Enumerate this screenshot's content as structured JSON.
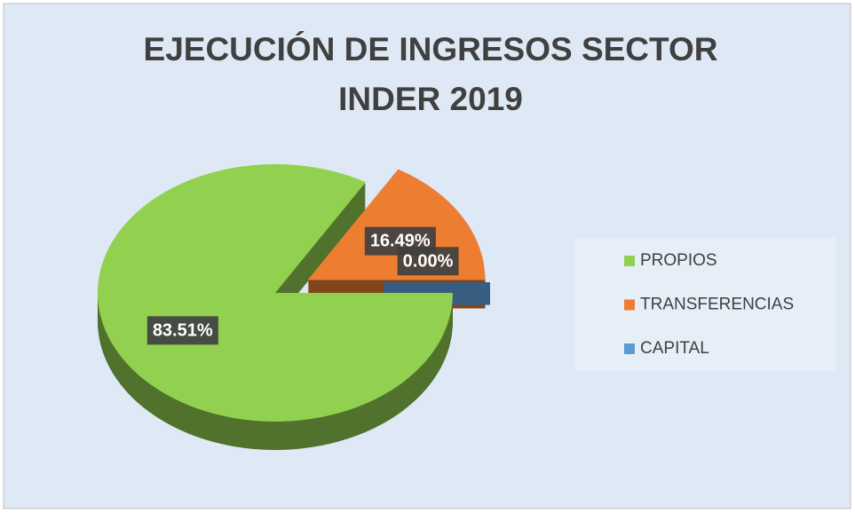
{
  "chart_data": {
    "type": "pie",
    "title": "EJECUCIÓN DE INGRESOS SECTOR INDER 2019",
    "categories": [
      "PROPIOS",
      "TRANSFERENCIAS",
      "CAPITAL"
    ],
    "values": [
      83.51,
      16.49,
      0.0
    ],
    "value_labels": [
      "83.51%",
      "16.49%",
      "0.00%"
    ],
    "colors": [
      "#92d050",
      "#ed7d31",
      "#5b9bd5"
    ],
    "legend": "right"
  }
}
